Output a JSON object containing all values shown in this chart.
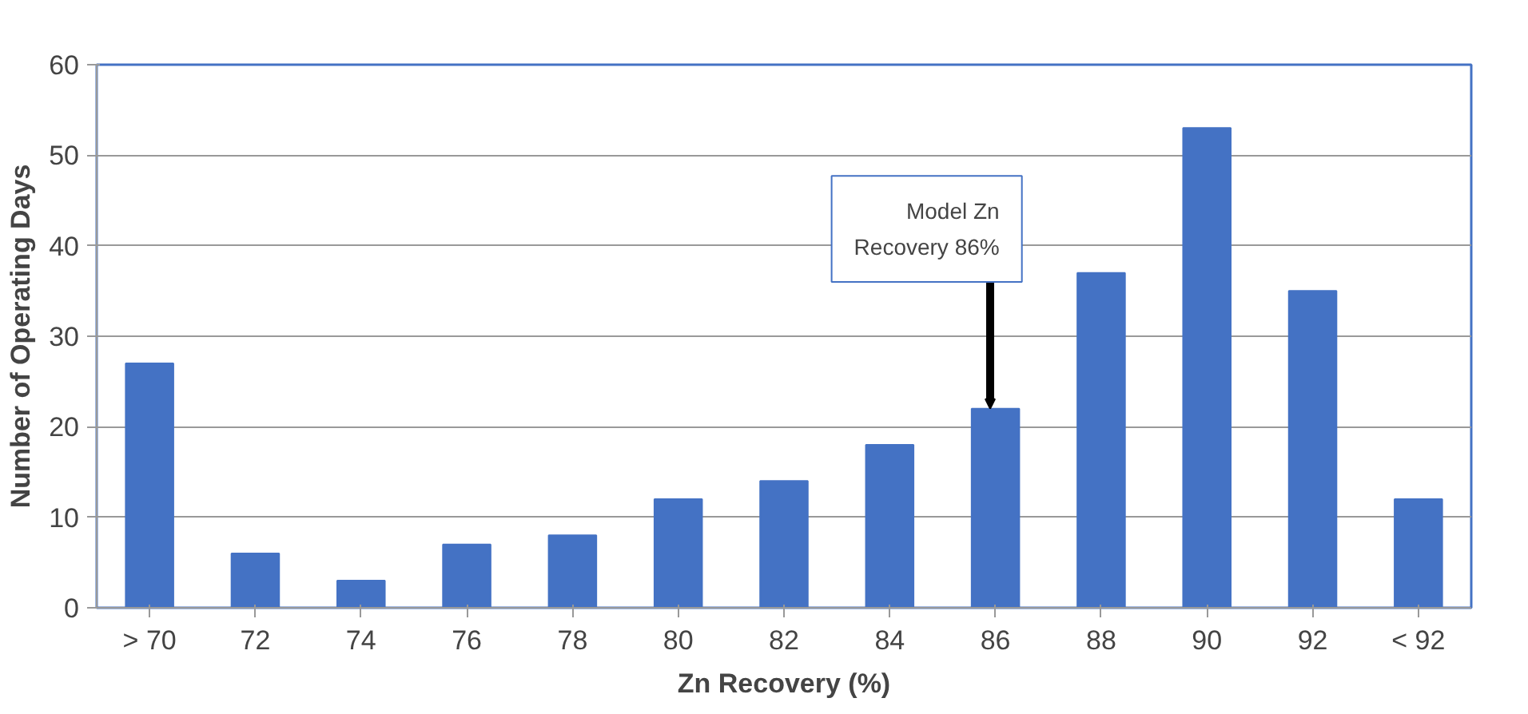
{
  "chart_data": {
    "type": "bar",
    "xlabel": "Zn Recovery (%)",
    "ylabel": "Number of Operating Days",
    "categories": [
      "> 70",
      "72",
      "74",
      "76",
      "78",
      "80",
      "82",
      "84",
      "86",
      "88",
      "90",
      "92",
      "< 92"
    ],
    "values": [
      27,
      6,
      3,
      7,
      8,
      12,
      14,
      18,
      22,
      37,
      53,
      35,
      12
    ],
    "color": "#4472c4",
    "ylim": [
      0,
      60
    ],
    "yticks": [
      0,
      10,
      20,
      30,
      40,
      50,
      60
    ],
    "grid": "y",
    "annotations": [
      {
        "text": "Model Zn Recovery 86%",
        "x": "86",
        "y": 22
      }
    ]
  }
}
